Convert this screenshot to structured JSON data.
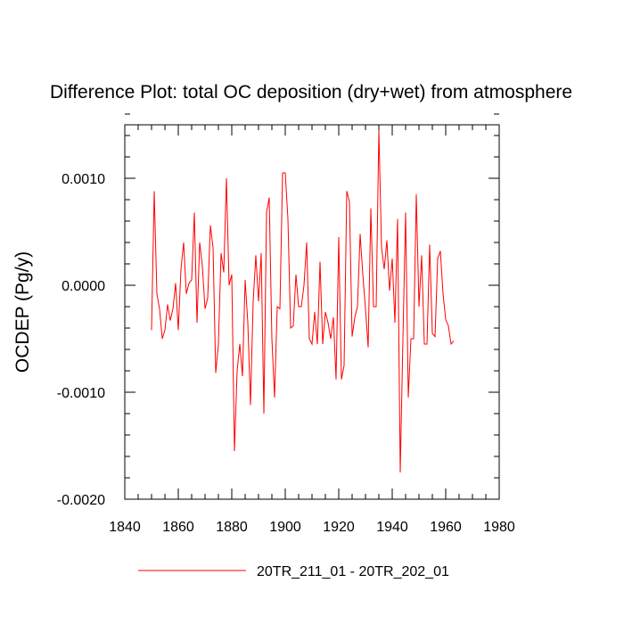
{
  "chart_data": {
    "type": "line",
    "title": "Difference Plot: total OC deposition (dry+wet) from atmosphere",
    "xlabel": "",
    "ylabel": "OCDEP  (Pg/y)",
    "xlim": [
      1840,
      1980
    ],
    "ylim": [
      -0.002,
      0.0015
    ],
    "xticks": [
      1840,
      1860,
      1880,
      1900,
      1920,
      1940,
      1960,
      1980
    ],
    "xtick_labels": [
      "1840",
      "1860",
      "1880",
      "1900",
      "1920",
      "1940",
      "1960",
      "1980"
    ],
    "yticks": [
      -0.002,
      -0.001,
      0.0,
      0.001
    ],
    "ytick_labels": [
      "-0.0020",
      "-0.0010",
      "0.0000",
      "0.0010"
    ],
    "series": [
      {
        "name": "20TR_211_01 - 20TR_202_01",
        "color": "#ff0000",
        "x": [
          1850,
          1851,
          1852,
          1853,
          1854,
          1855,
          1856,
          1857,
          1858,
          1859,
          1860,
          1861,
          1862,
          1863,
          1864,
          1865,
          1866,
          1867,
          1868,
          1869,
          1870,
          1871,
          1872,
          1873,
          1874,
          1875,
          1876,
          1877,
          1878,
          1879,
          1880,
          1881,
          1882,
          1883,
          1884,
          1885,
          1886,
          1887,
          1888,
          1889,
          1890,
          1891,
          1892,
          1893,
          1894,
          1895,
          1896,
          1897,
          1898,
          1899,
          1900,
          1901,
          1902,
          1903,
          1904,
          1905,
          1906,
          1907,
          1908,
          1909,
          1910,
          1911,
          1912,
          1913,
          1914,
          1915,
          1916,
          1917,
          1918,
          1919,
          1920,
          1921,
          1922,
          1923,
          1924,
          1925,
          1926,
          1927,
          1928,
          1929,
          1930,
          1931,
          1932,
          1933,
          1934,
          1935,
          1936,
          1937,
          1938,
          1939,
          1940,
          1941,
          1942,
          1943,
          1944,
          1945,
          1946,
          1947,
          1948,
          1949,
          1950,
          1951,
          1952,
          1953,
          1954,
          1955,
          1956,
          1957,
          1958,
          1959,
          1960,
          1961,
          1962,
          1963
        ],
        "values": [
          -0.00042,
          0.00088,
          -8e-05,
          -0.00022,
          -0.0005,
          -0.00042,
          -0.00018,
          -0.00033,
          -0.00022,
          2e-05,
          -0.00042,
          0.00015,
          0.0004,
          -8e-05,
          2e-05,
          5e-05,
          0.00068,
          -0.00035,
          0.0004,
          0.00018,
          -0.00022,
          -0.00012,
          0.00056,
          0.00035,
          -0.00082,
          -0.00055,
          0.0003,
          0.00012,
          0.001,
          0.0,
          0.0001,
          -0.00155,
          -0.0008,
          -0.00055,
          -0.00085,
          5e-05,
          -0.00035,
          -0.00112,
          -0.00015,
          0.00028,
          -0.00015,
          0.0003,
          -0.0012,
          0.00068,
          0.00082,
          -0.0005,
          -0.00105,
          -0.0002,
          -0.00022,
          0.00105,
          0.00105,
          0.00062,
          -0.0004,
          -0.00038,
          0.0001,
          -0.0002,
          -0.0002,
          0.0,
          0.0004,
          -0.0005,
          -0.00055,
          -0.00025,
          -0.00055,
          0.00022,
          -0.00055,
          -0.00025,
          -0.00035,
          -0.0005,
          -0.0003,
          -0.00088,
          0.00045,
          -0.00088,
          -0.00075,
          0.00088,
          0.00078,
          -0.00048,
          -0.0003,
          -0.0002,
          0.00048,
          0.0001,
          -0.00022,
          -0.00058,
          0.00072,
          -0.0002,
          -0.0002,
          0.00145,
          0.00035,
          0.00015,
          0.00042,
          -5e-05,
          0.00025,
          -0.00035,
          0.00062,
          -0.00175,
          -0.0005,
          0.00068,
          -0.00105,
          -0.0005,
          -0.0005,
          0.00085,
          -0.0002,
          0.00028,
          -0.00055,
          -0.00055,
          0.00038,
          -0.00045,
          -0.00048,
          0.00025,
          0.00032,
          -8e-05,
          -0.00032,
          -0.00038,
          -0.00055,
          -0.00052
        ]
      }
    ],
    "legend": {
      "placement": "bottom-center"
    }
  }
}
